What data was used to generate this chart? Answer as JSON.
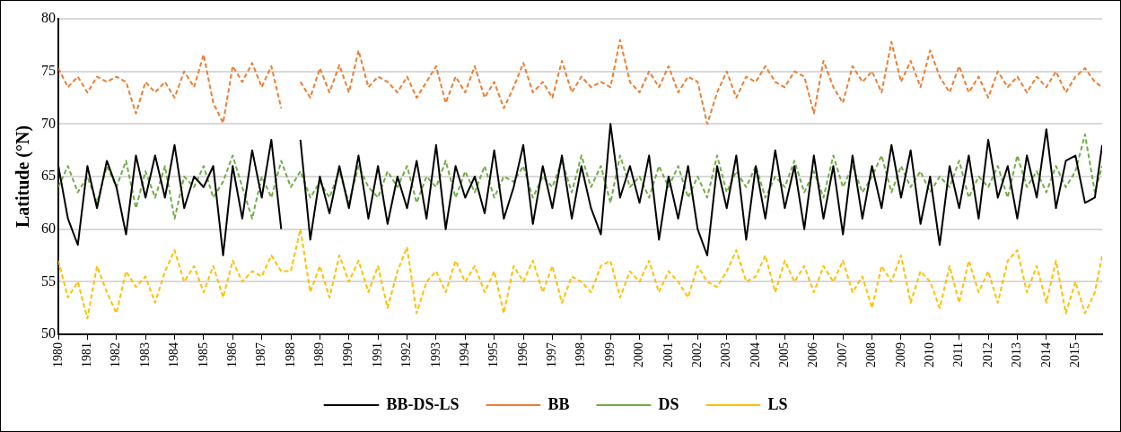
{
  "chart_data": {
    "type": "line",
    "ylabel": "Latitude (°N)",
    "x": [
      1980,
      1980.33,
      1980.67,
      1981,
      1981.33,
      1981.67,
      1982,
      1982.33,
      1982.67,
      1983,
      1983.33,
      1983.67,
      1984,
      1984.33,
      1984.67,
      1985,
      1985.33,
      1985.67,
      1986,
      1986.33,
      1986.67,
      1987,
      1987.33,
      1987.67,
      1988,
      1988.33,
      1988.67,
      1989,
      1989.33,
      1989.67,
      1990,
      1990.33,
      1990.67,
      1991,
      1991.33,
      1991.67,
      1992,
      1992.33,
      1992.67,
      1993,
      1993.33,
      1993.67,
      1994,
      1994.33,
      1994.67,
      1995,
      1995.33,
      1995.67,
      1996,
      1996.33,
      1996.67,
      1997,
      1997.33,
      1997.67,
      1998,
      1998.33,
      1998.67,
      1999,
      1999.33,
      1999.67,
      2000,
      2000.33,
      2000.67,
      2001,
      2001.33,
      2001.67,
      2002,
      2002.33,
      2002.67,
      2003,
      2003.33,
      2003.67,
      2004,
      2004.33,
      2004.67,
      2005,
      2005.33,
      2005.67,
      2006,
      2006.33,
      2006.67,
      2007,
      2007.33,
      2007.67,
      2008,
      2008.33,
      2008.67,
      2009,
      2009.33,
      2009.67,
      2010,
      2010.33,
      2010.67,
      2011,
      2011.33,
      2011.67,
      2012,
      2012.33,
      2012.67,
      2013,
      2013.33,
      2013.67,
      2014,
      2014.33,
      2014.67,
      2015,
      2015.33,
      2015.67,
      2015.92
    ],
    "xlim": [
      1980,
      2015.92
    ],
    "xticks": [
      1980,
      1981,
      1982,
      1983,
      1984,
      1985,
      1986,
      1987,
      1988,
      1989,
      1990,
      1991,
      1992,
      1993,
      1994,
      1995,
      1996,
      1997,
      1998,
      1999,
      2000,
      2001,
      2002,
      2003,
      2004,
      2005,
      2006,
      2007,
      2008,
      2009,
      2010,
      2011,
      2012,
      2013,
      2014,
      2015
    ],
    "ylim": [
      50,
      80
    ],
    "yticks": [
      50,
      55,
      60,
      65,
      70,
      75,
      80
    ],
    "grid": "y",
    "legend": "bottom",
    "marker": "none",
    "series": [
      {
        "name": "BB-DS-LS",
        "color": "#000000",
        "line_style": "solid",
        "values": [
          66,
          61,
          58.5,
          66,
          62,
          66.5,
          64,
          59.5,
          67,
          63,
          67,
          63,
          68,
          62,
          65,
          64,
          66,
          57.5,
          66,
          61,
          67.5,
          63,
          68.5,
          60,
          null,
          68.5,
          59,
          65,
          61.5,
          66,
          62,
          67,
          61,
          66,
          60.5,
          65,
          62,
          66.5,
          61,
          68,
          60,
          66,
          63,
          65,
          61.5,
          67.5,
          61,
          64,
          68,
          60.5,
          66,
          62,
          67,
          61,
          66,
          62,
          59.5,
          70,
          63,
          66,
          62.5,
          67,
          59,
          65,
          61,
          66,
          60,
          57.5,
          66,
          62,
          67,
          59,
          66,
          61,
          67.5,
          62,
          66,
          60,
          67,
          61,
          66,
          59.5,
          67,
          61,
          66,
          62,
          68,
          63,
          67.5,
          60.5,
          65,
          58.5,
          66,
          62,
          67,
          61,
          68.5,
          63,
          66,
          61,
          67,
          63,
          69.5,
          62,
          66.5,
          67,
          62.5,
          63,
          68
        ]
      },
      {
        "name": "BB",
        "color": "#ed7d31",
        "line_style": "dashed",
        "values": [
          75.3,
          73.5,
          74.5,
          73,
          74.5,
          74,
          74.5,
          74,
          71,
          74,
          73,
          74,
          72.5,
          75,
          73.5,
          76.6,
          72,
          70.1,
          75.5,
          74,
          75.8,
          73.5,
          75.5,
          71.5,
          null,
          74,
          72.5,
          75.3,
          73,
          75.6,
          73,
          77,
          73.5,
          74.5,
          74,
          73,
          74.5,
          72.5,
          74,
          75.5,
          72,
          74.5,
          73,
          75.5,
          72.5,
          74,
          71.5,
          73.5,
          75.8,
          73,
          74,
          72.5,
          76,
          73,
          74.5,
          73.5,
          74,
          73.5,
          78,
          74,
          73,
          75,
          73.5,
          75.5,
          73,
          74.5,
          74,
          70,
          73,
          75,
          72.5,
          74.5,
          74,
          75.5,
          74,
          73.5,
          75,
          74.5,
          71,
          76,
          73.5,
          72,
          75.5,
          74,
          75,
          73,
          77.8,
          74,
          76,
          73.5,
          77,
          74.5,
          73,
          75.5,
          73,
          74.5,
          72.5,
          75,
          73.5,
          74.5,
          73,
          74.5,
          73.5,
          75,
          73,
          74.5,
          75.3,
          74,
          73.5
        ]
      },
      {
        "name": "DS",
        "color": "#70ad47",
        "line_style": "dashed",
        "values": [
          64,
          66,
          63.5,
          65,
          62.5,
          66,
          64,
          66.5,
          62,
          65.5,
          63,
          66,
          61,
          65,
          64,
          66,
          63,
          64.5,
          67,
          64,
          61,
          65,
          63,
          66.5,
          64,
          65.5,
          63,
          64.5,
          63,
          65.5,
          62.5,
          66,
          64,
          63,
          65.5,
          64,
          66,
          62.5,
          65,
          64,
          66.5,
          63,
          65.5,
          63.5,
          66,
          63,
          65,
          64.5,
          66,
          63,
          65,
          64,
          66.5,
          63.5,
          67,
          64,
          66,
          62.5,
          67,
          64,
          65,
          63,
          66,
          64,
          66,
          63,
          65,
          63,
          67,
          63.5,
          65.5,
          64,
          66,
          63,
          65,
          64,
          66.5,
          63.5,
          65.5,
          63,
          67,
          64,
          66,
          63.5,
          65,
          67,
          63.5,
          66,
          64,
          65.5,
          63.5,
          65,
          64,
          66.5,
          63,
          65,
          64,
          66,
          63,
          67,
          64,
          65.5,
          63.5,
          66,
          64,
          65.5,
          69,
          63.5,
          66
        ]
      },
      {
        "name": "LS",
        "color": "#ffc000",
        "line_style": "dashed",
        "values": [
          57,
          53.5,
          55,
          51.5,
          56.5,
          54,
          52,
          56,
          54.5,
          55.5,
          53,
          56,
          58,
          55,
          56.5,
          54,
          56.5,
          53.5,
          57,
          55,
          56,
          55.5,
          57.5,
          56,
          56,
          60,
          54,
          56.5,
          53.5,
          57.5,
          55,
          57,
          54,
          56.5,
          52.5,
          56,
          58.3,
          52,
          55,
          56,
          54,
          57,
          55,
          56.5,
          54,
          56,
          52,
          56.5,
          55,
          57,
          54,
          56.5,
          53,
          55.5,
          55,
          54,
          56.5,
          57,
          53.5,
          56,
          55,
          57,
          54,
          56,
          55,
          53.5,
          56.5,
          55,
          54.5,
          56,
          58,
          55,
          55.5,
          57.5,
          54,
          57,
          55,
          56.5,
          54,
          56.5,
          55,
          57,
          54,
          55.5,
          52.5,
          56.5,
          55,
          57.5,
          53,
          56,
          55,
          52.5,
          56.5,
          53,
          57,
          54,
          56,
          53,
          57,
          58,
          54,
          56.5,
          53,
          57,
          52,
          55,
          52,
          54,
          57.5
        ]
      }
    ]
  }
}
